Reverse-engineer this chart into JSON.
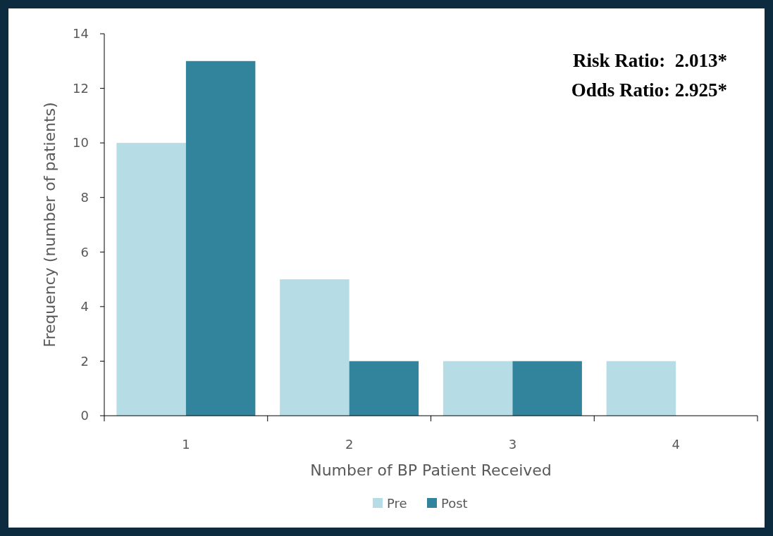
{
  "chart_data": {
    "type": "bar",
    "xlabel": "Number of BP Patient Received",
    "ylabel": "Frequency (number of patients)",
    "categories": [
      "1",
      "2",
      "3",
      "4"
    ],
    "series": [
      {
        "name": "Pre",
        "color": "#b6dde6",
        "values": [
          10,
          5,
          2,
          2
        ]
      },
      {
        "name": "Post",
        "color": "#31849b",
        "values": [
          13,
          2,
          2,
          0
        ]
      }
    ],
    "ylim": [
      0,
      14
    ],
    "yticks": [
      0,
      2,
      4,
      6,
      8,
      10,
      12,
      14
    ],
    "grid": false,
    "legend": "bottom",
    "annotations": [
      "Risk Ratio:  2.013*",
      "Odds Ratio: 2.925*"
    ]
  }
}
